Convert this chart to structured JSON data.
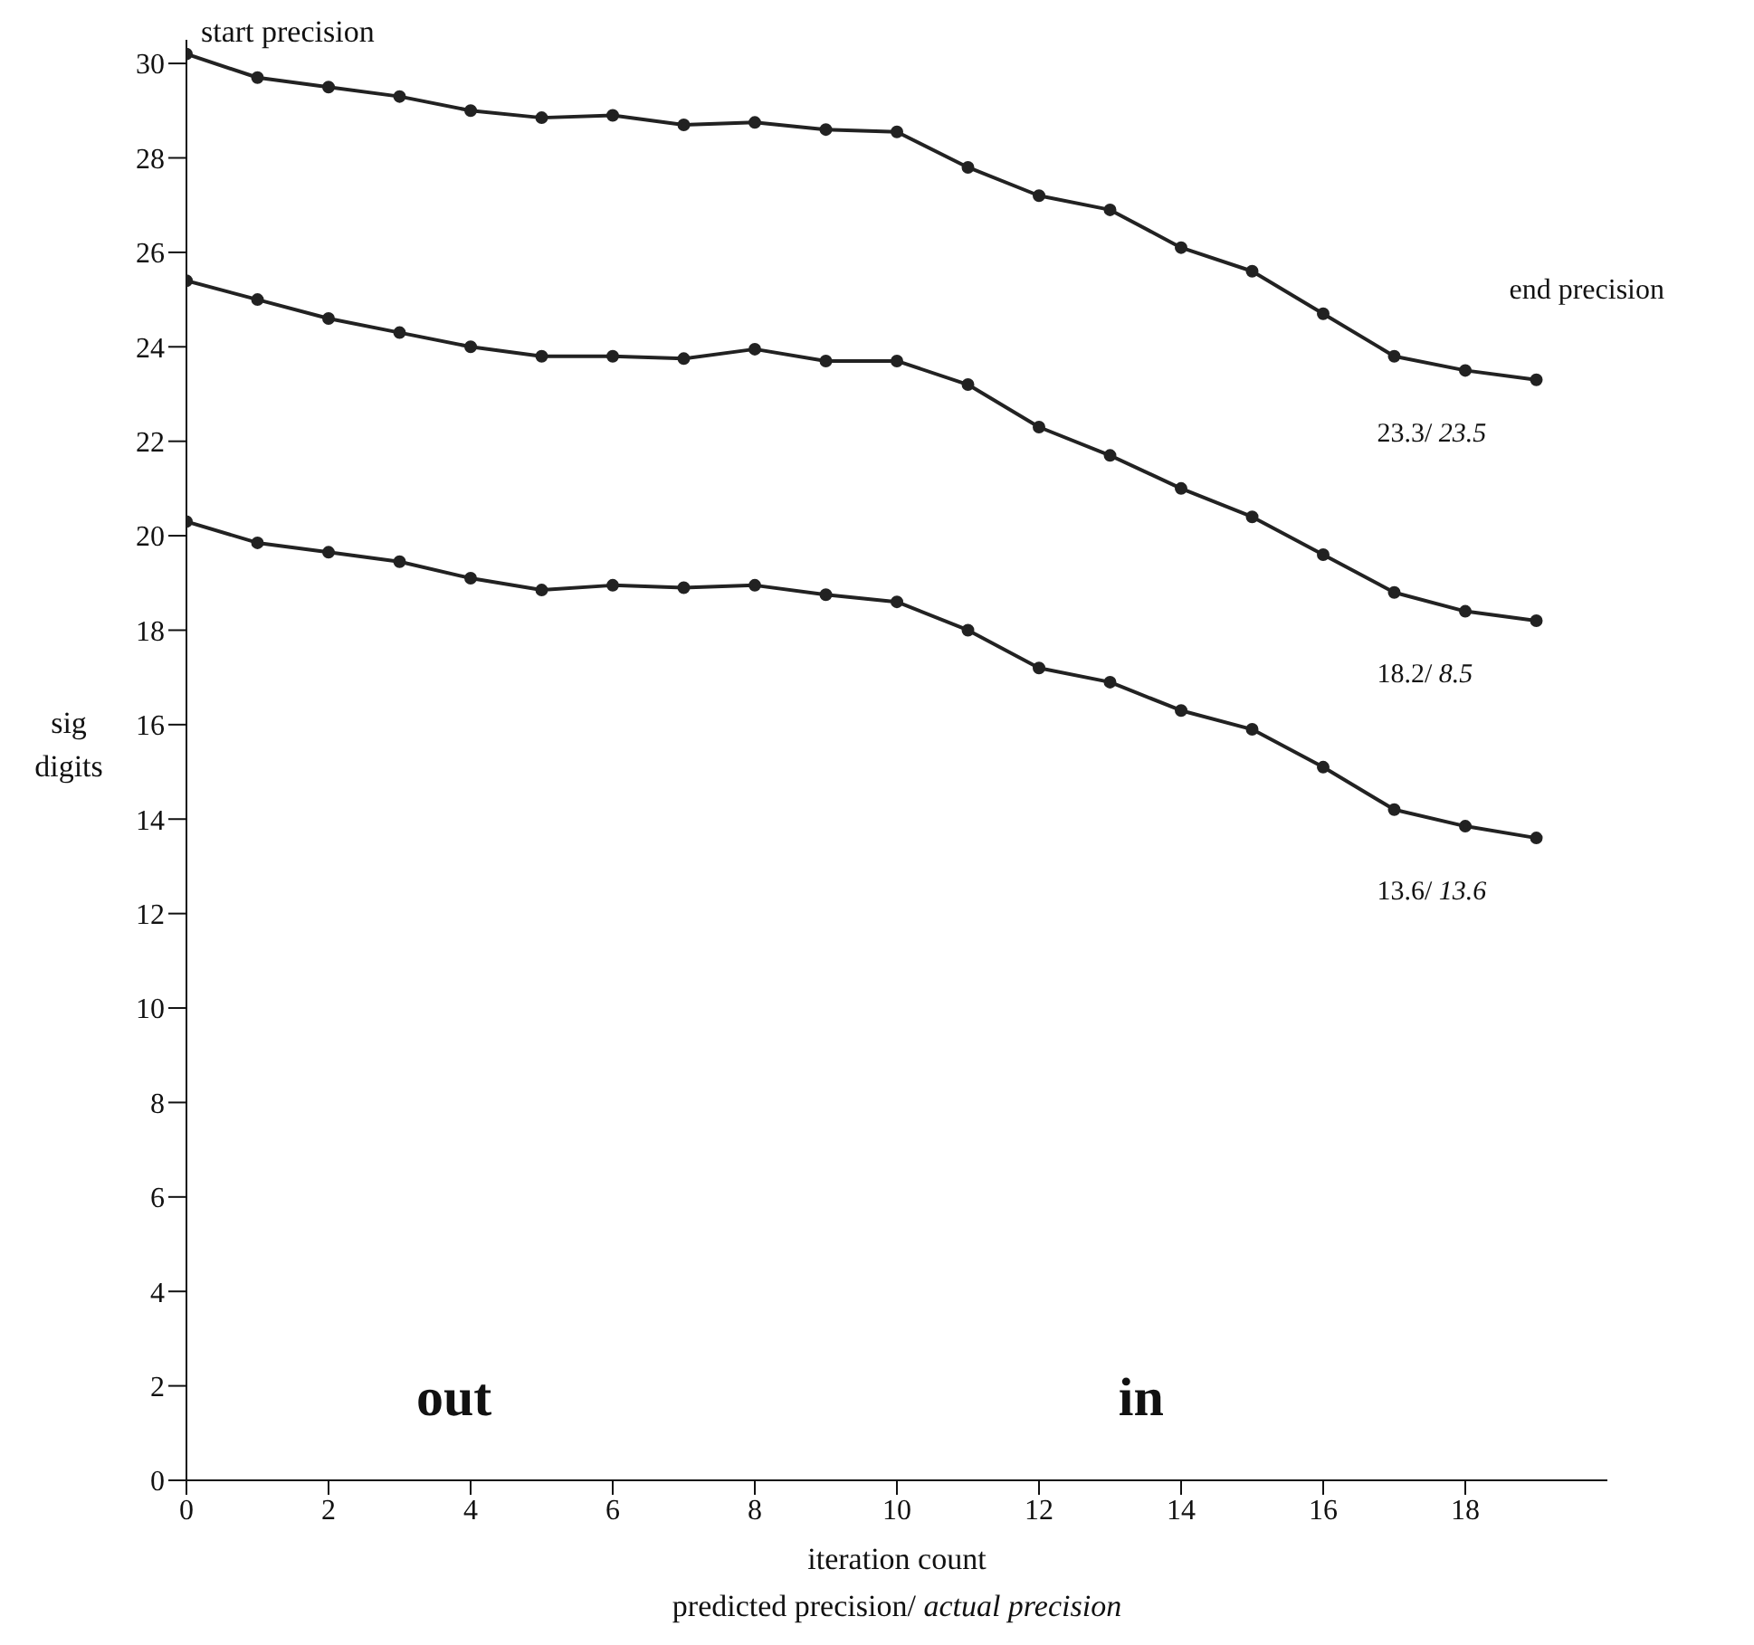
{
  "chart_data": {
    "type": "line",
    "xlabel": "iteration count",
    "ylabel": "sig digits",
    "x": [
      0,
      1,
      2,
      3,
      4,
      5,
      6,
      7,
      8,
      9,
      10,
      11,
      12,
      13,
      14,
      15,
      16,
      17,
      18,
      19
    ],
    "series": [
      {
        "color": "#222222",
        "values": [
          30.2,
          29.7,
          29.5,
          29.3,
          29.0,
          28.85,
          28.9,
          28.7,
          28.75,
          28.6,
          28.55,
          27.8,
          27.2,
          26.9,
          26.1,
          25.6,
          24.7,
          23.8,
          23.5,
          23.3
        ]
      },
      {
        "color": "#222222",
        "values": [
          25.4,
          25.0,
          24.6,
          24.3,
          24.0,
          23.8,
          23.8,
          23.75,
          23.95,
          23.7,
          23.7,
          23.2,
          22.3,
          21.7,
          21.0,
          20.4,
          19.6,
          18.8,
          18.4,
          18.2
        ]
      },
      {
        "color": "#222222",
        "values": [
          20.3,
          19.85,
          19.65,
          19.45,
          19.1,
          18.85,
          18.95,
          18.9,
          18.95,
          18.75,
          18.6,
          18.0,
          17.2,
          16.9,
          16.3,
          15.9,
          15.1,
          14.2,
          13.85,
          13.6
        ]
      }
    ],
    "xlim": [
      0,
      20
    ],
    "xticks": [
      0,
      2,
      4,
      6,
      8,
      10,
      12,
      14,
      16,
      18
    ],
    "ylim": [
      0,
      30.5
    ],
    "yticks": [
      0,
      2,
      4,
      6,
      8,
      10,
      12,
      14,
      16,
      18,
      20,
      22,
      24,
      26,
      28,
      30
    ],
    "marker": "circle",
    "line_style": "solid",
    "grid": false,
    "legend": false,
    "annotations": [
      "start precision",
      "end precision",
      "23.3/ 23.5",
      "18.2/ 8.5",
      "13.6/ 13.6",
      "out",
      "in",
      "predicted precision/ actual precision"
    ]
  }
}
